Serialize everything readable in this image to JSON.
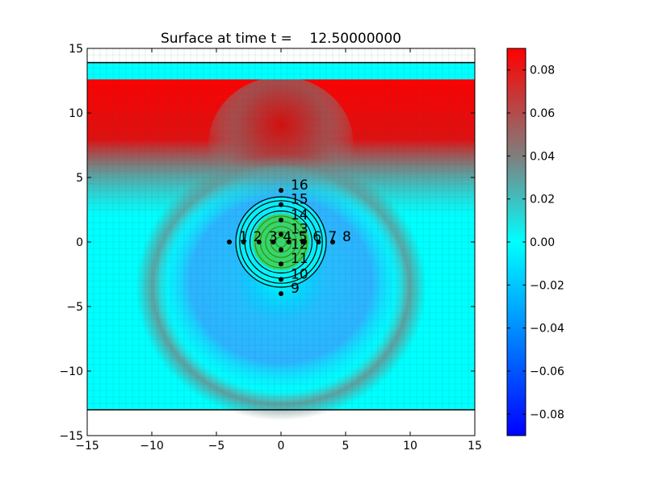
{
  "chart_data": {
    "type": "heatmap",
    "title_prefix": "Surface at time t =",
    "title_value": "12.50000000",
    "xlim": [
      -15,
      15
    ],
    "ylim": [
      -15,
      15
    ],
    "xticks": [
      -15,
      -10,
      -5,
      0,
      5,
      10,
      15
    ],
    "yticks": [
      -15,
      -10,
      -5,
      0,
      5,
      10,
      15
    ],
    "grid": true,
    "colorbar": {
      "min": -0.09,
      "max": 0.09,
      "ticks": [
        -0.08,
        -0.06,
        -0.04,
        -0.02,
        0.0,
        0.02,
        0.04,
        0.06,
        0.08
      ],
      "tick_labels": [
        "−0.08",
        "−0.06",
        "−0.04",
        "−0.02",
        "0.00",
        "0.02",
        "0.04",
        "0.06",
        "0.08"
      ],
      "colors": [
        "#0000ff",
        "#00ffff",
        "#7f7f7f",
        "#ff0000"
      ]
    },
    "domain_top_line_y": 13.9,
    "domain_bottom_line_y": -13.0,
    "contour_center": [
      0,
      0
    ],
    "contour_radii": [
      0.4,
      0.8,
      1.2,
      1.6,
      2.0,
      2.4,
      2.8,
      3.2,
      3.5
    ],
    "gauges": [
      {
        "label": "1",
        "x": -4.0,
        "y": 0.0
      },
      {
        "label": "2",
        "x": -2.9,
        "y": 0.0
      },
      {
        "label": "3",
        "x": -1.7,
        "y": 0.0
      },
      {
        "label": "4",
        "x": -0.6,
        "y": 0.0
      },
      {
        "label": "5",
        "x": 0.6,
        "y": 0.0
      },
      {
        "label": "6",
        "x": 1.7,
        "y": 0.0
      },
      {
        "label": "7",
        "x": 2.9,
        "y": 0.0
      },
      {
        "label": "8",
        "x": 4.0,
        "y": 0.0
      },
      {
        "label": "9",
        "x": 0.0,
        "y": -4.0
      },
      {
        "label": "10",
        "x": 0.0,
        "y": -2.9
      },
      {
        "label": "11",
        "x": 0.0,
        "y": -1.7
      },
      {
        "label": "12",
        "x": 0.0,
        "y": -0.6
      },
      {
        "label": "13",
        "x": 0.0,
        "y": 0.6
      },
      {
        "label": "14",
        "x": 0.0,
        "y": 1.7
      },
      {
        "label": "15",
        "x": 0.0,
        "y": 2.9
      },
      {
        "label": "16",
        "x": 0.0,
        "y": 4.0
      }
    ]
  }
}
